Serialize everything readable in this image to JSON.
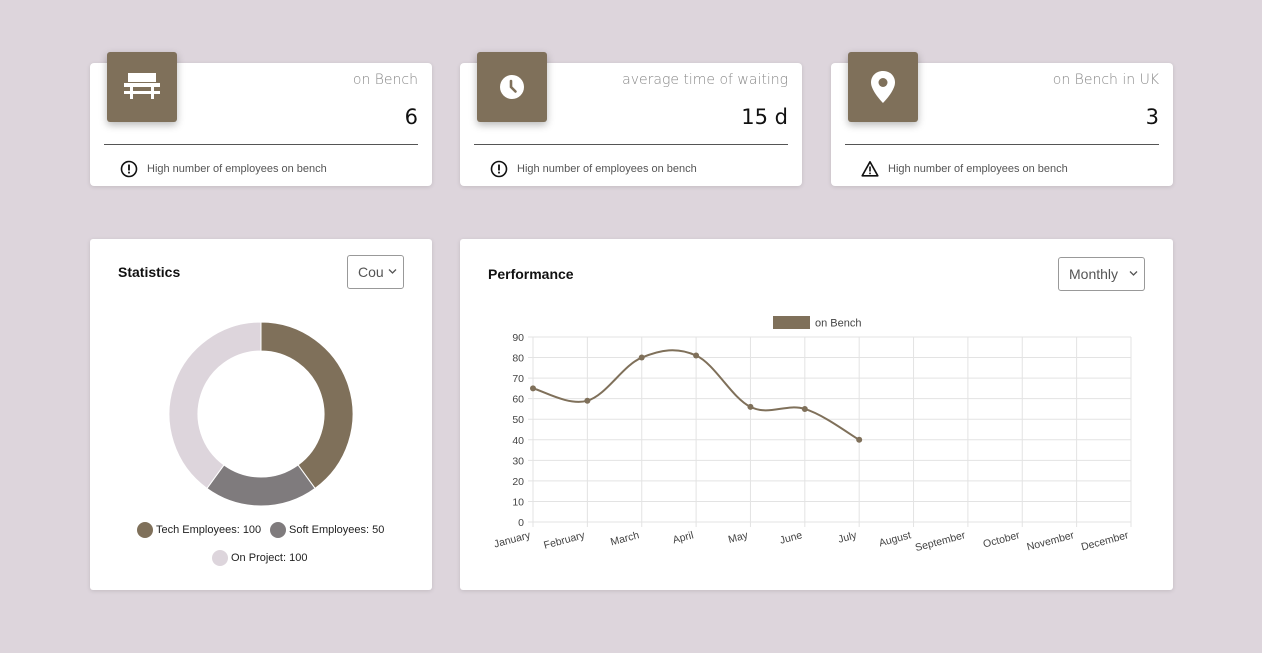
{
  "colors": {
    "background": "#ddd5dc",
    "accent": "#7f705a",
    "soft": "#7f7b7d",
    "project": "#ddd5dc"
  },
  "cards": [
    {
      "icon": "bench-icon",
      "label": "on Bench",
      "value": "6",
      "footer_icon": "exclamation-circle-icon",
      "footer": "High number of employees on bench"
    },
    {
      "icon": "clock-icon",
      "label": "average time of waiting",
      "value": "15 d",
      "footer_icon": "exclamation-circle-icon",
      "footer": "High number of employees on bench"
    },
    {
      "icon": "map-pin-icon",
      "label": "on Bench in UK",
      "value": "3",
      "footer_icon": "warning-triangle-icon",
      "footer": "High number of employees on bench"
    }
  ],
  "statistics": {
    "title": "Statistics",
    "select_value": "Cou",
    "legend": [
      {
        "label": "Tech Employees: 100"
      },
      {
        "label": "Soft Employees: 50"
      },
      {
        "label": "On Project: 100"
      }
    ]
  },
  "performance": {
    "title": "Performance",
    "select_value": "Monthly"
  },
  "chart_data": [
    {
      "type": "pie",
      "categories": [
        "Tech Employees",
        "Soft Employees",
        "On Project"
      ],
      "values": [
        100,
        50,
        100
      ],
      "colors": [
        "#7f705a",
        "#7f7b7d",
        "#ddd5dc"
      ],
      "legend_position": "bottom"
    },
    {
      "type": "line",
      "categories": [
        "January",
        "February",
        "March",
        "April",
        "May",
        "June",
        "July",
        "August",
        "September",
        "October",
        "November",
        "December"
      ],
      "series": [
        {
          "name": "on Bench",
          "values": [
            65,
            59,
            80,
            81,
            56,
            55,
            40,
            null,
            null,
            null,
            null,
            null
          ],
          "color": "#7f705a"
        }
      ],
      "ylim": [
        0,
        90
      ],
      "yticks": [
        0,
        10,
        20,
        30,
        40,
        50,
        60,
        70,
        80,
        90
      ],
      "grid": true,
      "legend_position": "top"
    }
  ]
}
